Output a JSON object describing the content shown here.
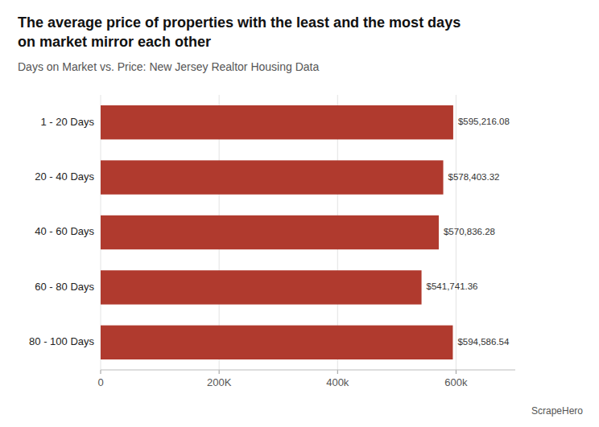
{
  "chart_data": {
    "type": "bar",
    "orientation": "horizontal",
    "title": "The average price of properties with the least and the most days\non market mirror each other",
    "subtitle": "Days on Market vs. Price: New Jersey Realtor Housing Data",
    "categories": [
      "1 - 20 Days",
      "20 - 40 Days",
      "40 - 60 Days",
      "60 - 80 Days",
      "80 - 100 Days"
    ],
    "values": [
      595216.08,
      578403.32,
      570836.28,
      541741.36,
      594586.54
    ],
    "value_labels": [
      "$595,216.08",
      "$578,403.32",
      "$570,836.28",
      "$541,741.36",
      "$594,586.54"
    ],
    "data_labels": true,
    "color": "#B03A2E",
    "xlim": [
      0,
      700000
    ],
    "xticks": [
      0,
      {
        "value": 200000,
        "label": "200K"
      },
      {
        "value": 400000,
        "label": "400k"
      },
      {
        "value": 600000,
        "label": "600k"
      }
    ],
    "grid": true,
    "annotations": [
      "ScrapeHero"
    ]
  }
}
